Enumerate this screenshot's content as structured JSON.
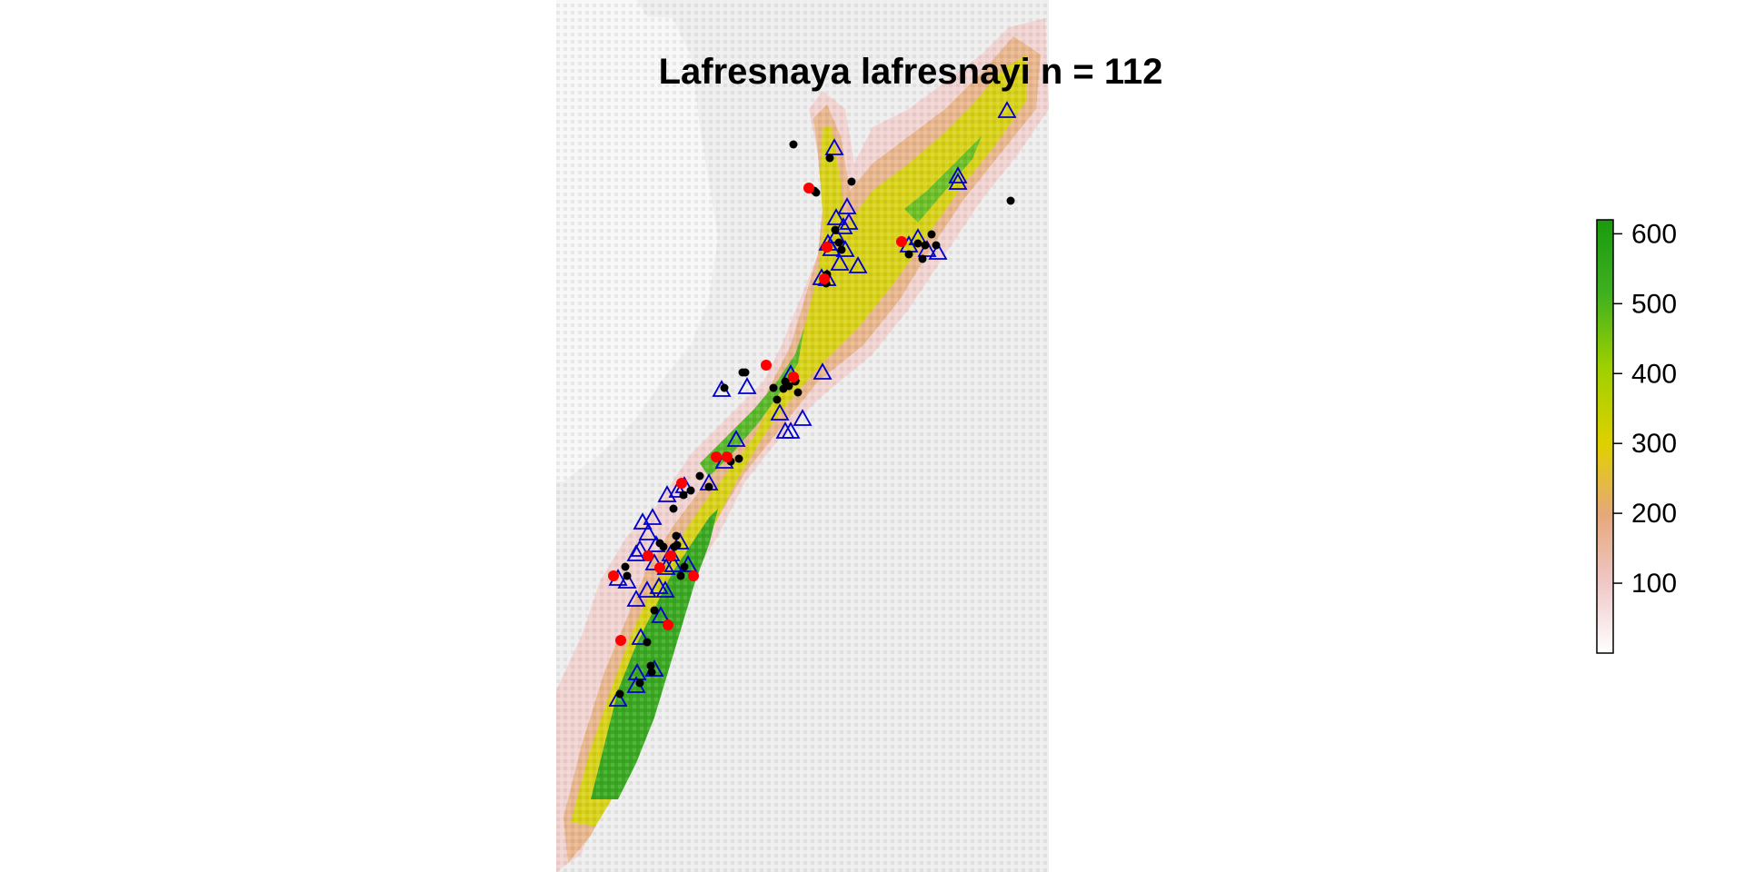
{
  "title": "Lafresnaya lafresnayi n = 112",
  "colors": {
    "background": "#efeeee",
    "low": "#f2e6e6",
    "orange": "#e8a878",
    "yellow": "#dcdc00",
    "green": "#2ea31a",
    "dark_green": "#1a9a0e",
    "presence_point": "#000000",
    "highlight_point": "#ff0000",
    "triangle": "#0000cc"
  },
  "legend": {
    "ticks": [
      "100",
      "200",
      "300",
      "400",
      "500",
      "600"
    ],
    "range": [
      0,
      620
    ]
  },
  "markers": {
    "black_dot": "presence-point",
    "red_dot": "test-point",
    "blue_triangle": "background-triangle"
  }
}
